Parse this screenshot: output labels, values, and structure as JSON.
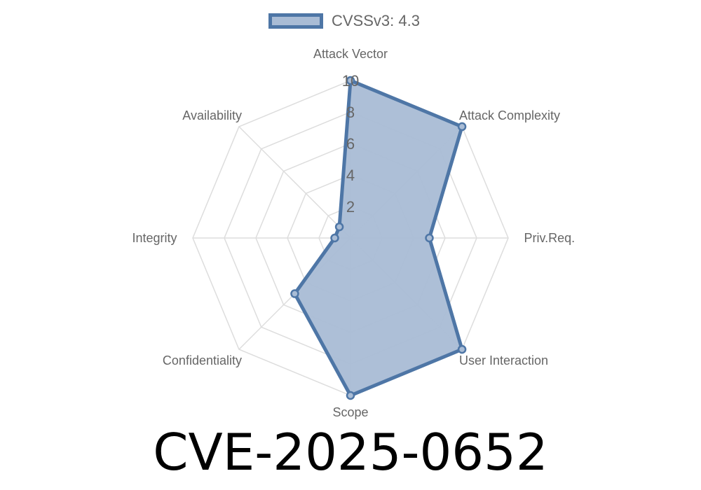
{
  "chart_data": {
    "type": "radar",
    "axes": [
      "Attack Vector",
      "Attack Complexity",
      "Priv.Req.",
      "User Interaction",
      "Scope",
      "Confidentiality",
      "Integrity",
      "Availability"
    ],
    "series": [
      {
        "name": "CVSSv3: 4.3",
        "values": [
          10,
          10,
          5,
          10,
          10,
          5,
          1,
          1
        ]
      }
    ],
    "rlim": [
      0,
      10
    ],
    "ticks": [
      "2",
      "4",
      "6",
      "8",
      "10"
    ],
    "tick_values": [
      2,
      4,
      6,
      8,
      10
    ],
    "grid": true,
    "legend_position": "top",
    "colors": {
      "stroke": "#4e76a6",
      "fill": "#a9bcd5",
      "grid": "#dddddd",
      "text": "#666666"
    }
  },
  "title": "CVE-2025-0652"
}
